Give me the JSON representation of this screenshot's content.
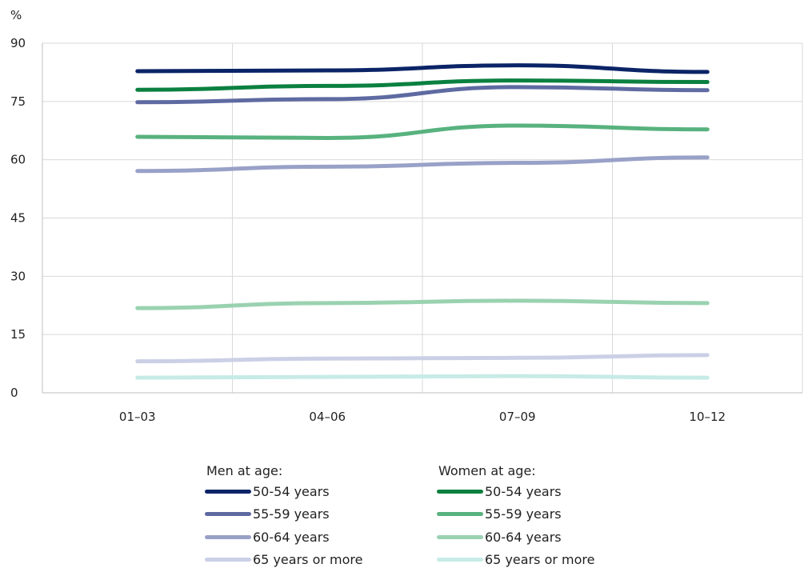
{
  "chart_data": {
    "type": "line",
    "ylabel": "%",
    "categories": [
      "01–03",
      "04–06",
      "07–09",
      "10–12"
    ],
    "yticks": [
      0,
      15,
      30,
      45,
      60,
      75,
      90
    ],
    "ylim": [
      0,
      90
    ],
    "grid": "on",
    "legend_placement": "bottom",
    "groups": [
      {
        "heading": "Men at age:",
        "series": [
          {
            "name": "50-54 years",
            "color": "#0b2467",
            "values": [
              82.8,
              83.0,
              84.3,
              82.6
            ]
          },
          {
            "name": "55-59 years",
            "color": "#5e6aa1",
            "values": [
              74.8,
              75.6,
              78.7,
              77.9
            ]
          },
          {
            "name": "60-64 years",
            "color": "#98a1c7",
            "values": [
              57.1,
              58.2,
              59.2,
              60.6
            ]
          },
          {
            "name": "65 years or more",
            "color": "#cbd0e6",
            "values": [
              8.1,
              8.8,
              9.0,
              9.7
            ]
          }
        ]
      },
      {
        "heading": "Women at age:",
        "series": [
          {
            "name": "50-54 years",
            "color": "#0b8040",
            "values": [
              78.0,
              79.0,
              80.4,
              80.0
            ]
          },
          {
            "name": "55-59 years",
            "color": "#58b27e",
            "values": [
              65.9,
              65.6,
              68.8,
              67.8
            ]
          },
          {
            "name": "60-64 years",
            "color": "#9ad2b0",
            "values": [
              21.8,
              23.1,
              23.7,
              23.1
            ]
          },
          {
            "name": "65 years or more",
            "color": "#c7ebe6",
            "values": [
              3.9,
              4.1,
              4.3,
              3.9
            ]
          }
        ]
      }
    ]
  }
}
